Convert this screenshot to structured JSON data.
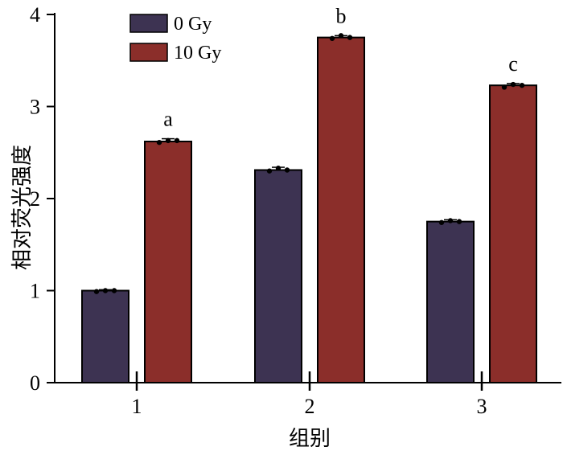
{
  "chart_data": {
    "type": "bar",
    "title": "",
    "xlabel": "组别",
    "ylabel": "相对荧光强度",
    "categories": [
      "1",
      "2",
      "3"
    ],
    "ylim": [
      0,
      4
    ],
    "yticks": [
      0,
      1,
      2,
      3,
      4
    ],
    "series": [
      {
        "name": "0 Gy",
        "color": "#3d3352",
        "values": [
          1.0,
          2.31,
          1.75
        ],
        "errors": [
          0.01,
          0.03,
          0.02
        ],
        "points": [
          [
            0.99,
            1.0,
            1.0
          ],
          [
            2.3,
            2.33,
            2.31
          ],
          [
            1.74,
            1.76,
            1.75
          ]
        ]
      },
      {
        "name": "10 Gy",
        "color": "#8b2e2a",
        "values": [
          2.62,
          3.75,
          3.23
        ],
        "errors": [
          0.03,
          0.02,
          0.02
        ],
        "points": [
          [
            2.61,
            2.63,
            2.63
          ],
          [
            3.74,
            3.77,
            3.75
          ],
          [
            3.21,
            3.24,
            3.23
          ]
        ]
      }
    ],
    "annotations": [
      "a",
      "b",
      "c"
    ],
    "legend_position": "top-left",
    "grid": false
  }
}
